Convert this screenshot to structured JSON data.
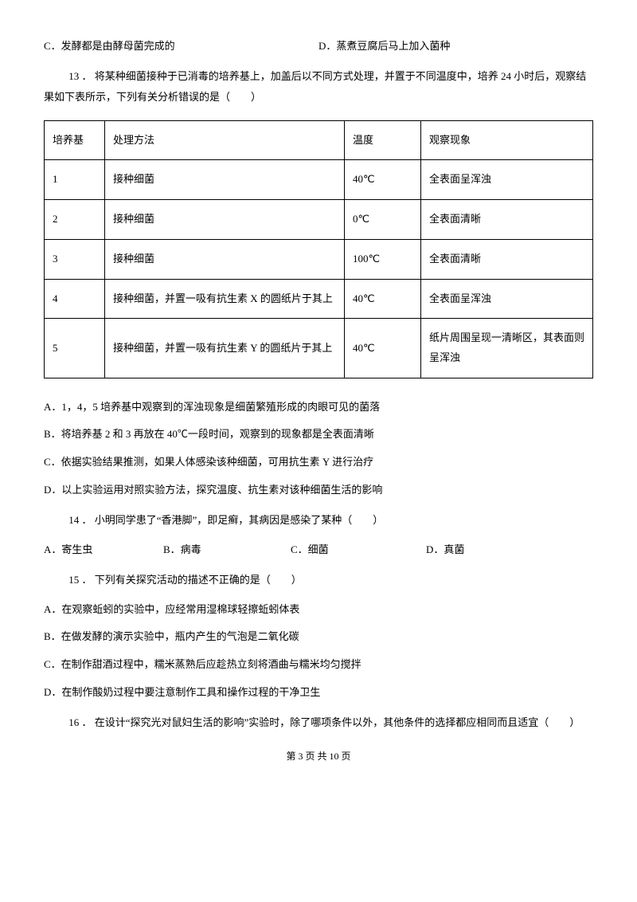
{
  "top_options": {
    "c": "C．发酵都是由酵母菌完成的",
    "d": "D．蒸煮豆腐后马上加入菌种"
  },
  "q13": {
    "stem": "13 ．  将某种细菌接种于已消毒的培养基上，加盖后以不同方式处理，并置于不同温度中，培养 24 小时后，观察结果如下表所示，下列有关分析错误的是（　　）",
    "table": {
      "header": [
        "培养基",
        "处理方法",
        "温度",
        "观察现象"
      ],
      "rows": [
        [
          "1",
          "接种细菌",
          "40℃",
          "全表面呈浑浊"
        ],
        [
          "2",
          "接种细菌",
          "0℃",
          "全表面清晰"
        ],
        [
          "3",
          "接种细菌",
          "100℃",
          "全表面清晰"
        ],
        [
          "4",
          "接种细菌，并置一吸有抗生素 X 的圆纸片于其上",
          "40℃",
          "全表面呈浑浊"
        ],
        [
          "5",
          "接种细菌，并置一吸有抗生素 Y 的圆纸片于其上",
          "40℃",
          "纸片周围呈现一清晰区，其表面则呈浑浊"
        ]
      ]
    },
    "options": {
      "a": "A．1，4，5 培养基中观察到的浑浊现象是细菌繁殖形成的肉眼可见的菌落",
      "b": "B．将培养基 2 和 3 再放在 40℃一段时间，观察到的现象都是全表面清晰",
      "c": "C．依据实验结果推测，如果人体感染该种细菌，可用抗生素 Y 进行治疗",
      "d": "D．以上实验运用对照实验方法，探究温度、抗生素对该种细菌生活的影响"
    }
  },
  "q14": {
    "stem": "14 ．  小明同学患了“香港脚”，即足癣，其病因是感染了某种（　　）",
    "a": "A．寄生虫",
    "b": "B．病毒",
    "c": "C．细菌",
    "d": "D．真菌"
  },
  "q15": {
    "stem": "15 ．  下列有关探究活动的描述不正确的是（　　）",
    "a": "A．在观察蚯蚓的实验中，应经常用湿棉球轻擦蚯蚓体表",
    "b": "B．在做发酵的演示实验中，瓶内产生的气泡是二氧化碳",
    "c": "C．在制作甜酒过程中，糯米蒸熟后应趁热立刻将酒曲与糯米均匀搅拌",
    "d": "D．在制作酸奶过程中要注意制作工具和操作过程的干净卫生"
  },
  "q16": {
    "stem": "16 ．  在设计“探究光对鼠妇生活的影响”实验时，除了哪项条件以外，其他条件的选择都应相同而且适宜（　　）"
  },
  "footer": "第 3 页 共 10 页"
}
